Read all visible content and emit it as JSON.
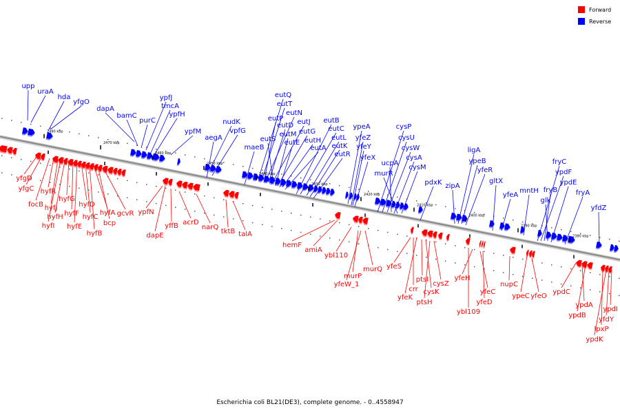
{
  "caption": "Escherichia coli BL21(DE3), complete genome. - 0..4558947",
  "legend": {
    "forward": {
      "label": "Forward",
      "color": "#ff0000"
    },
    "reverse": {
      "label": "Reverse",
      "color": "#0000ff"
    }
  },
  "colors": {
    "forward": "#ff0000",
    "reverse": "#0000ff",
    "backbone": "#888888"
  },
  "ticks": [
    "2480 kbp",
    "2470 kbp",
    "2460 kbp",
    "2450 kbp",
    "2440 kbp",
    "2430 kbp",
    "2420 kbp",
    "2410 kbp",
    "2400 kbp",
    "2390 kbp",
    "2380 kbp"
  ],
  "genes_reverse": [
    "upp",
    "uraA",
    "hda",
    "yfgO",
    "dapA",
    "bamC",
    "purC",
    "ypfJ",
    "tmcA",
    "ypfH",
    "ypfM",
    "aegA",
    "nudK",
    "vpfG",
    "maeB",
    "eutQ",
    "eutT",
    "eutP",
    "eutN",
    "eutD",
    "eutJ",
    "eutS",
    "eutM",
    "eutG",
    "eutE",
    "eutH",
    "eutA",
    "eutB",
    "eutC",
    "eutL",
    "eutK",
    "eutR",
    "ypeA",
    "yfeZ",
    "yfeY",
    "yfeX",
    "cysP",
    "cysU",
    "cysW",
    "ucpA",
    "cysA",
    "murR",
    "cysM",
    "pdxK",
    "zipA",
    "ligA",
    "ypeB",
    "yfeR",
    "gltX",
    "yfeA",
    "mntH",
    "fryC",
    "ypdF",
    "fryB",
    "glk",
    "ypdE",
    "fryA",
    "yfdZ"
  ],
  "genes_forward": [
    "yfgD",
    "yfgC",
    "focB",
    "hyfR",
    "hyfJ",
    "hyfI",
    "hyfH",
    "hyfG",
    "hyfF",
    "hyfE",
    "hyfD",
    "hyfC",
    "hyfB",
    "hyfA",
    "bcp",
    "gcvR",
    "ypfN",
    "dapE",
    "yffB",
    "acrD",
    "narQ",
    "tktB",
    "talA",
    "hemF",
    "amiA",
    "ybl110",
    "murP",
    "yfeW_1",
    "murQ",
    "yfeS",
    "crr",
    "yfeK",
    "ptsI",
    "cysK",
    "ptsH",
    "cysZ",
    "ybl109",
    "yfeH",
    "yfeC",
    "yfeD",
    "nupC",
    "ypeC",
    "yfeO",
    "ypdC",
    "ypdA",
    "ypdB",
    "lpxP",
    "ypdK",
    "yfdY",
    "ypdI"
  ]
}
